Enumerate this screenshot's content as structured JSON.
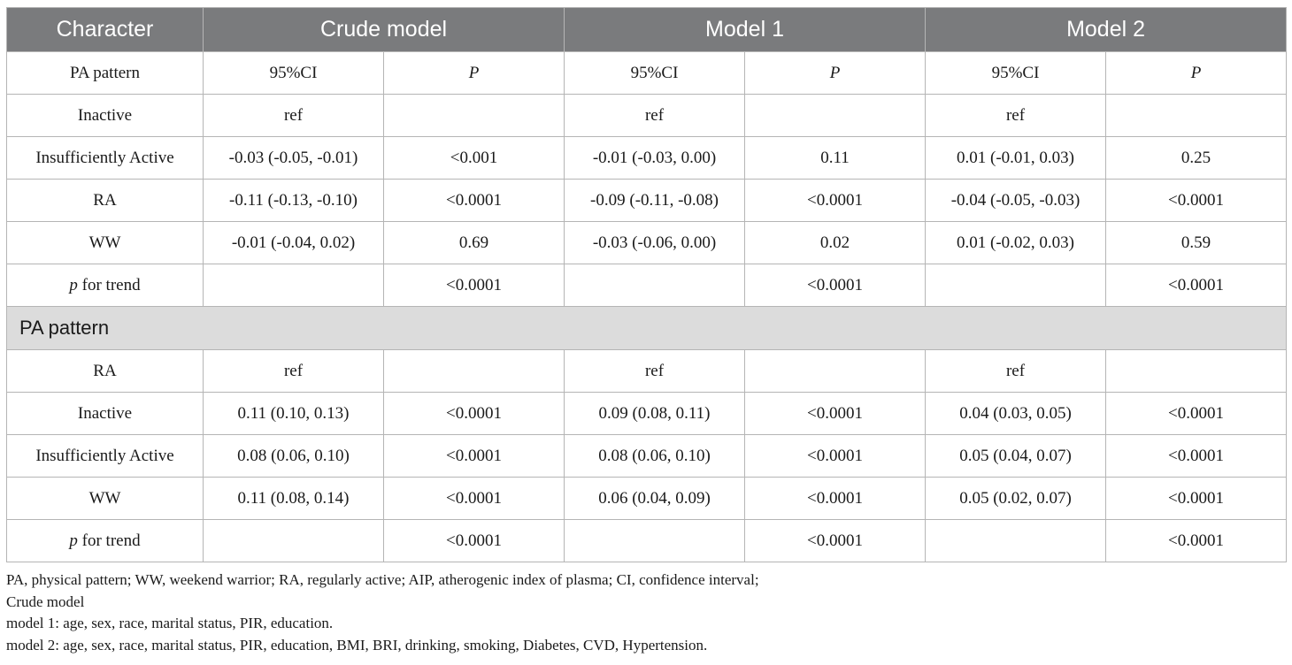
{
  "header": {
    "character": "Character",
    "crude": "Crude model",
    "model1": "Model 1",
    "model2": "Model 2"
  },
  "subheader": {
    "label": "PA pattern",
    "ci": "95%CI",
    "p": "P"
  },
  "block1": {
    "rows": [
      {
        "label": "Inactive",
        "c1": "ref",
        "p1": "",
        "c2": "ref",
        "p2": "",
        "c3": "ref",
        "p3": ""
      },
      {
        "label": "Insufficiently Active",
        "c1": "-0.03 (-0.05, -0.01)",
        "p1": "<0.001",
        "c2": "-0.01 (-0.03, 0.00)",
        "p2": "0.11",
        "c3": "0.01 (-0.01, 0.03)",
        "p3": "0.25"
      },
      {
        "label": "RA",
        "c1": "-0.11 (-0.13, -0.10)",
        "p1": "<0.0001",
        "c2": "-0.09 (-0.11, -0.08)",
        "p2": "<0.0001",
        "c3": "-0.04 (-0.05, -0.03)",
        "p3": "<0.0001"
      },
      {
        "label": "WW",
        "c1": "-0.01 (-0.04, 0.02)",
        "p1": "0.69",
        "c2": "-0.03 (-0.06, 0.00)",
        "p2": "0.02",
        "c3": "0.01 (-0.02, 0.03)",
        "p3": "0.59"
      }
    ],
    "trend": {
      "p_italic": "p",
      "label_rest": " for trend",
      "p1": "<0.0001",
      "p2": "<0.0001",
      "p3": "<0.0001"
    }
  },
  "section_label": "PA pattern",
  "block2": {
    "rows": [
      {
        "label": "RA",
        "c1": "ref",
        "p1": "",
        "c2": "ref",
        "p2": "",
        "c3": "ref",
        "p3": ""
      },
      {
        "label": "Inactive",
        "c1": "0.11 (0.10, 0.13)",
        "p1": "<0.0001",
        "c2": "0.09 (0.08, 0.11)",
        "p2": "<0.0001",
        "c3": "0.04 (0.03, 0.05)",
        "p3": "<0.0001"
      },
      {
        "label": "Insufficiently Active",
        "c1": "0.08 (0.06, 0.10)",
        "p1": "<0.0001",
        "c2": "0.08 (0.06, 0.10)",
        "p2": "<0.0001",
        "c3": "0.05 (0.04, 0.07)",
        "p3": "<0.0001"
      },
      {
        "label": "WW",
        "c1": "0.11 (0.08, 0.14)",
        "p1": "<0.0001",
        "c2": "0.06 (0.04, 0.09)",
        "p2": "<0.0001",
        "c3": "0.05 (0.02, 0.07)",
        "p3": "<0.0001"
      }
    ],
    "trend": {
      "p_italic": "p",
      "label_rest": " for trend",
      "p1": "<0.0001",
      "p2": "<0.0001",
      "p3": "<0.0001"
    }
  },
  "footnotes": [
    "PA, physical pattern; WW, weekend warrior; RA, regularly active; AIP, atherogenic index of plasma; CI, confidence interval;",
    "Crude model",
    "model 1: age, sex, race, marital status, PIR, education.",
    "model 2: age, sex, race, marital status, PIR, education, BMI, BRI, drinking, smoking, Diabetes, CVD, Hypertension."
  ],
  "colors": {
    "header_bg": "#7a7b7d",
    "section_bg": "#dcdcdc",
    "border": "#b5b5b5"
  }
}
